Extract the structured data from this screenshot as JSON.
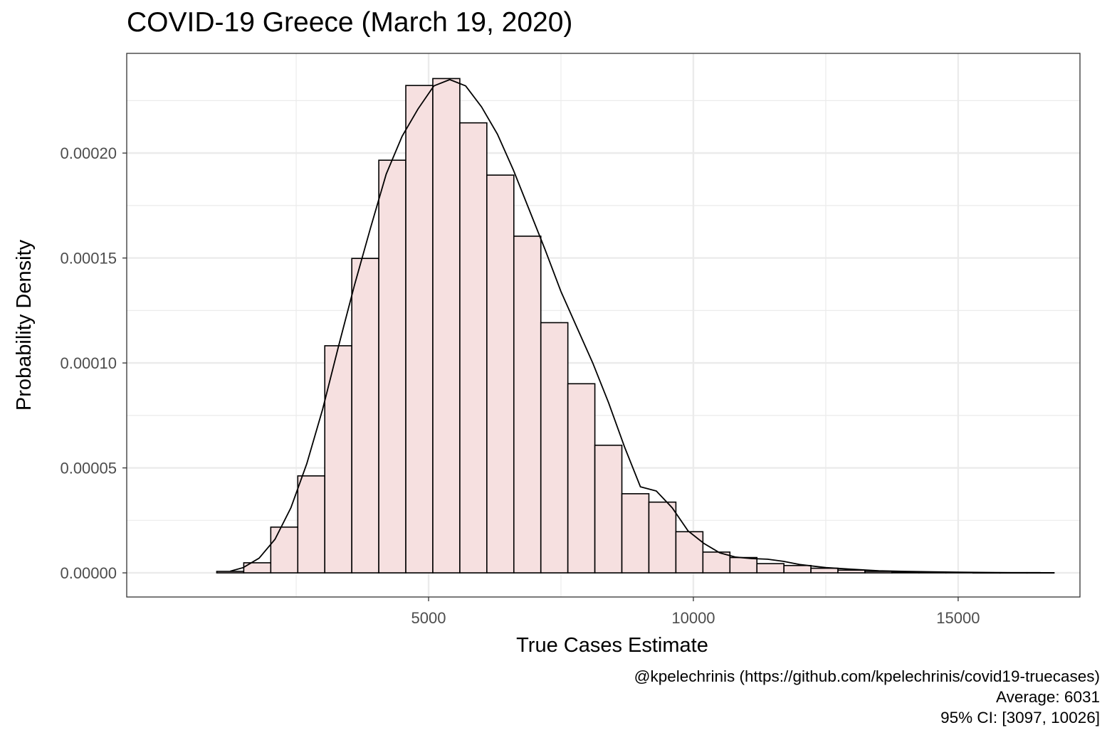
{
  "chart_data": {
    "type": "bar",
    "title": "COVID-19 Greece (March 19, 2020)",
    "xlabel": "True Cases Estimate",
    "ylabel": "Probability Density",
    "xlim": [
      -700,
      17300
    ],
    "ylim": [
      -1.15e-05,
      0.0002475
    ],
    "x_ticks": [
      5000,
      10000,
      15000
    ],
    "x_tick_labels": [
      "5000",
      "10000",
      "15000"
    ],
    "y_ticks": [
      0,
      5e-05,
      0.0001,
      0.00015,
      0.0002
    ],
    "y_tick_labels": [
      "0.00000",
      "0.00005",
      "0.00010",
      "0.00015",
      "0.00020"
    ],
    "grid": true,
    "bin_width": 510,
    "bin_centers": [
      1255,
      1765,
      2275,
      2785,
      3295,
      3805,
      4315,
      4825,
      5335,
      5845,
      6355,
      6865,
      7375,
      7885,
      8395,
      8905,
      9415,
      9925,
      10435,
      10945,
      11455,
      11965,
      12475,
      12985,
      13495,
      14005,
      14515,
      15025,
      15535,
      16045,
      16555
    ],
    "values": [
      7e-07,
      4.8e-06,
      2.18e-05,
      4.62e-05,
      0.0001082,
      0.0001498,
      0.0001966,
      0.0002322,
      0.0002355,
      0.0002144,
      0.0001895,
      0.0001604,
      0.0001192,
      9.01e-05,
      6.08e-05,
      3.77e-05,
      3.37e-05,
      1.96e-05,
      9.9e-06,
      7.3e-06,
      4.4e-06,
      3.5e-06,
      2.2e-06,
      1.3e-06,
      7e-07,
      4e-07,
      3e-07,
      2e-07,
      1e-07,
      1e-07,
      1e-07
    ],
    "density_curve": {
      "x": [
        1255,
        1500,
        1800,
        2100,
        2400,
        2700,
        3000,
        3300,
        3600,
        3900,
        4200,
        4500,
        4800,
        5100,
        5400,
        5700,
        6000,
        6300,
        6600,
        6900,
        7200,
        7500,
        7800,
        8100,
        8400,
        8700,
        9000,
        9300,
        9600,
        9900,
        10200,
        10500,
        10800,
        11100,
        11400,
        11700,
        12000,
        12500,
        13000,
        13500,
        14000,
        14500,
        15000,
        15500,
        16000,
        16555
      ],
      "y": [
        8e-07,
        2.5e-06,
        7e-06,
        1.6e-05,
        3.1e-05,
        5.2e-05,
        7.8e-05,
        0.000108,
        0.000137,
        0.000164,
        0.00019,
        0.000208,
        0.000221,
        0.000232,
        0.000235,
        0.000232,
        0.000222,
        0.000209,
        0.000192,
        0.000173,
        0.000154,
        0.000134,
        0.000117,
        0.0001,
        8.1e-05,
        6e-05,
        4.1e-05,
        3.9e-05,
        3.1e-05,
        2e-05,
        1.4e-05,
        9.5e-06,
        7.5e-06,
        6.8e-06,
        6.5e-06,
        5.5e-06,
        4e-06,
        2.5e-06,
        1.7e-06,
        1e-06,
        7e-07,
        5e-07,
        3e-07,
        2e-07,
        1e-07,
        1e-07
      ]
    },
    "colors": {
      "bar_fill": "#f6e0e0",
      "bar_stroke": "#000000",
      "curve": "#000000",
      "grid": "#ebebeb",
      "panel_border": "#333333"
    }
  },
  "caption": {
    "line1": "@kpelechrinis (https://github.com/kpelechrinis/covid19-truecases)",
    "line2": "Average: 6031",
    "line3": "95% CI: [3097, 10026]"
  }
}
